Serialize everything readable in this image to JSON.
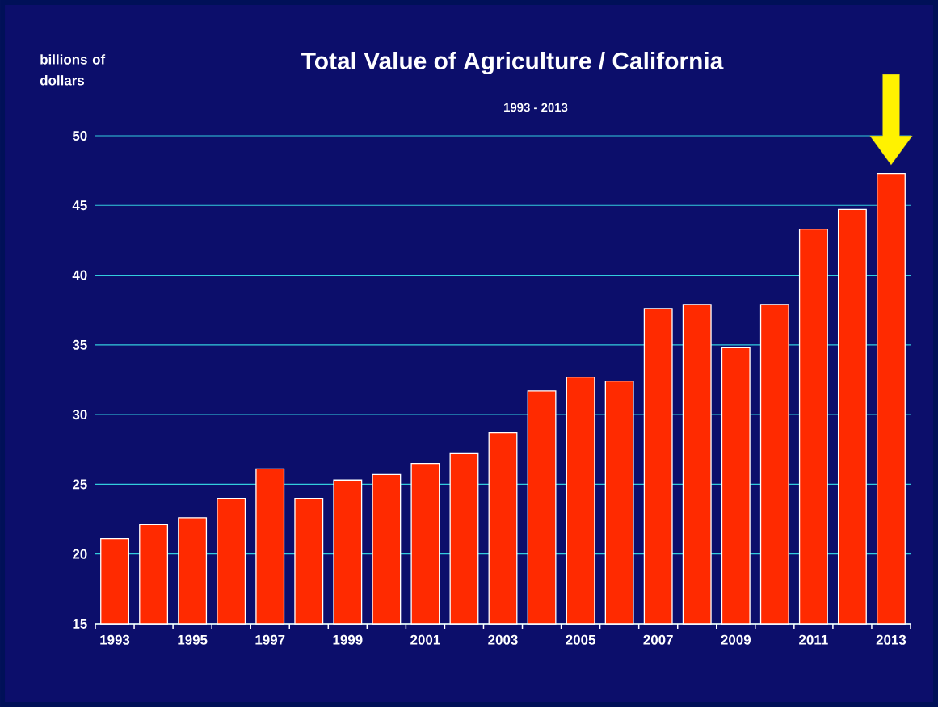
{
  "chart_data": {
    "type": "bar",
    "title": "Total Value of Agriculture / California",
    "subtitle": "1993 - 2013",
    "ylabel": "billions of dollars",
    "categories": [
      "1993",
      null,
      "1995",
      null,
      "1997",
      null,
      "1999",
      null,
      "2001",
      null,
      "2003",
      null,
      "2005",
      null,
      "2007",
      null,
      "2009",
      null,
      "2011",
      null,
      "2013"
    ],
    "values": [
      21.1,
      22.1,
      22.6,
      24.0,
      26.1,
      24.0,
      25.3,
      25.7,
      26.5,
      27.2,
      28.7,
      31.7,
      32.7,
      32.4,
      37.6,
      37.9,
      34.8,
      37.9,
      43.3,
      44.7,
      47.3
    ],
    "color": "#ff2a00",
    "ylim": [
      15,
      50
    ],
    "yticks": [
      15,
      20,
      25,
      30,
      35,
      40,
      45,
      50
    ],
    "grid": "y"
  }
}
